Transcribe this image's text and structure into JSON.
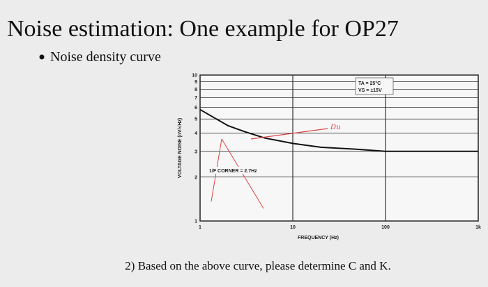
{
  "slide": {
    "title": "Noise estimation: One example for OP27",
    "bullet": "Noise density curve",
    "question": "2) Based on the above curve, please determine C and K."
  },
  "chart_data": {
    "type": "line",
    "xlabel": "FREQUENCY (Hz)",
    "ylabel": "VOLTAGE NOISE (nV/√Hz)",
    "x": [
      1,
      2,
      3,
      5,
      10,
      20,
      50,
      100,
      1000
    ],
    "series": [
      {
        "name": "OP27",
        "color": "#111111",
        "values": [
          5.8,
          4.5,
          4.1,
          3.7,
          3.4,
          3.2,
          3.1,
          3.0,
          3.0
        ]
      }
    ],
    "xlim": [
      1,
      1000
    ],
    "ylim": [
      1,
      10
    ],
    "log_x": true,
    "log_y": true,
    "grid": true,
    "xticks": [
      1,
      10,
      100,
      {
        "value": 1000,
        "label": "1k"
      }
    ],
    "yticks": [
      1,
      2,
      3,
      4,
      5,
      6,
      7,
      8,
      9,
      10
    ],
    "annotations": [
      "1/F CORNER = 2.7Hz",
      "TA = 25°C",
      "VS = ±15V",
      "Du"
    ]
  }
}
